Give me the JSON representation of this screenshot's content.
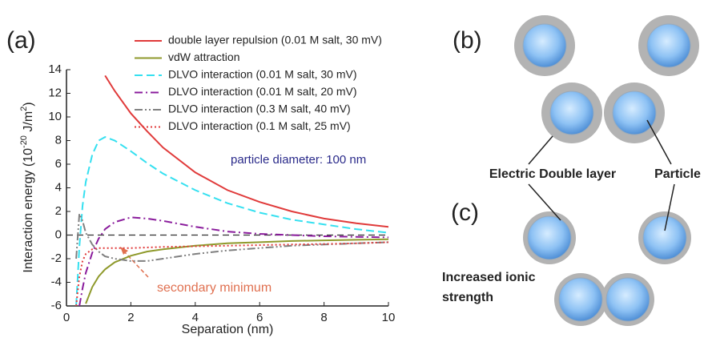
{
  "chart_data": {
    "type": "line",
    "panel_label": "(a)",
    "xlabel": "Separation (nm)",
    "ylabel": {
      "text": "Interaction energy (10",
      "sup1": "-20",
      "mid": " J/m",
      "sup2": "2",
      "end": ")"
    },
    "xlim": [
      0,
      10
    ],
    "ylim": [
      -6,
      14
    ],
    "xticks": [
      0,
      2,
      4,
      6,
      8,
      10
    ],
    "yticks": [
      -6,
      -4,
      -2,
      0,
      2,
      4,
      6,
      8,
      10,
      12,
      14
    ],
    "hline": 0,
    "x": [
      0.3,
      0.4,
      0.5,
      0.6,
      0.8,
      1,
      1.2,
      1.5,
      2,
      2.5,
      3,
      4,
      5,
      6,
      7,
      8,
      9,
      10
    ],
    "series": [
      {
        "name": "double layer repulsion (0.01 M salt, 30 mV)",
        "color": "#e03a3a",
        "dash": "solid",
        "values": [
          null,
          null,
          null,
          null,
          null,
          null,
          13.5,
          12.2,
          10.3,
          8.8,
          7.4,
          5.3,
          3.8,
          2.8,
          2.0,
          1.4,
          1.0,
          0.7
        ]
      },
      {
        "name": "vdW attraction",
        "color": "#8f9a2c",
        "dash": "solid",
        "values": [
          null,
          null,
          null,
          -5.8,
          -4.4,
          -3.5,
          -2.9,
          -2.3,
          -1.75,
          -1.4,
          -1.2,
          -0.9,
          -0.7,
          -0.6,
          -0.5,
          -0.45,
          -0.4,
          -0.35
        ]
      },
      {
        "name": "DLVO interaction (0.01 M salt, 30 mV)",
        "color": "#35e0f0",
        "dash": "dashed",
        "values": [
          -6,
          -1,
          2.5,
          4.5,
          6.8,
          8.0,
          8.3,
          8.0,
          7.1,
          6.1,
          5.2,
          3.8,
          2.7,
          1.9,
          1.3,
          0.9,
          0.5,
          0.2
        ]
      },
      {
        "name": "DLVO interaction (0.01 M salt, 20 mV)",
        "color": "#8a1c9c",
        "dash": "dashdot",
        "values": [
          null,
          -6,
          -4.5,
          -3.2,
          -1.5,
          -0.3,
          0.5,
          1.1,
          1.5,
          1.4,
          1.2,
          0.7,
          0.3,
          0.1,
          0,
          -0.1,
          -0.15,
          -0.2
        ]
      },
      {
        "name": "DLVO interaction (0.3 M salt, 40 mV)",
        "color": "#808080",
        "dash": "dashdotdot",
        "values": [
          -2,
          1.8,
          1.2,
          0.2,
          -0.8,
          -1.4,
          -1.8,
          -2.0,
          -2.2,
          -2.2,
          -2.0,
          -1.6,
          -1.3,
          -1.1,
          -0.9,
          -0.8,
          -0.7,
          -0.6
        ]
      },
      {
        "name": "DLVO interaction (0.1 M salt, 25 mV)",
        "color": "#e03a3a",
        "dash": "dotted",
        "values": [
          -6,
          -3.5,
          -2.2,
          -1.6,
          -1.2,
          -1.1,
          -1.1,
          -1.1,
          -1.1,
          -1.05,
          -1.0,
          -0.95,
          -0.9,
          -0.85,
          -0.8,
          -0.75,
          -0.7,
          -0.6
        ]
      }
    ],
    "annotations": [
      "particle diameter: 100 nm",
      "secondary minimum"
    ]
  },
  "diagram": {
    "panel_b": "(b)",
    "panel_c": "(c)",
    "labels": [
      "Electric Double layer",
      "Particle"
    ],
    "caption": [
      "Increased ionic",
      "strength"
    ]
  }
}
